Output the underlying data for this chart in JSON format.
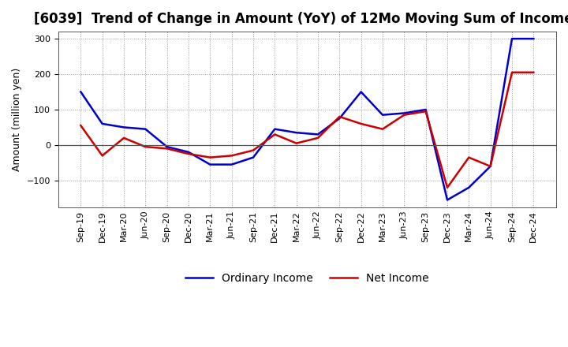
{
  "title": "[6039]  Trend of Change in Amount (YoY) of 12Mo Moving Sum of Incomes",
  "ylabel": "Amount (million yen)",
  "x_labels": [
    "Sep-19",
    "Dec-19",
    "Mar-20",
    "Jun-20",
    "Sep-20",
    "Dec-20",
    "Mar-21",
    "Jun-21",
    "Sep-21",
    "Dec-21",
    "Mar-22",
    "Jun-22",
    "Sep-22",
    "Dec-22",
    "Mar-23",
    "Jun-23",
    "Sep-23",
    "Dec-23",
    "Mar-24",
    "Jun-24",
    "Sep-24",
    "Dec-24"
  ],
  "ordinary_income": [
    150,
    60,
    50,
    45,
    -5,
    -20,
    -55,
    -55,
    -35,
    45,
    35,
    30,
    75,
    150,
    85,
    90,
    100,
    -155,
    -120,
    -60,
    300,
    300
  ],
  "net_income": [
    55,
    -30,
    20,
    -5,
    -10,
    -25,
    -35,
    -30,
    -15,
    30,
    5,
    20,
    80,
    60,
    45,
    85,
    95,
    -120,
    -35,
    -60,
    205,
    205
  ],
  "ordinary_income_color": "#0000CC",
  "net_income_color": "#CC0000",
  "ylim": [
    -175,
    320
  ],
  "yticks": [
    -100,
    0,
    100,
    200,
    300
  ],
  "background_color": "#FFFFFF",
  "grid_color": "#999999",
  "legend_ordinary": "Ordinary Income",
  "legend_net": "Net Income",
  "title_fontsize": 12,
  "axis_fontsize": 9,
  "tick_fontsize": 8
}
